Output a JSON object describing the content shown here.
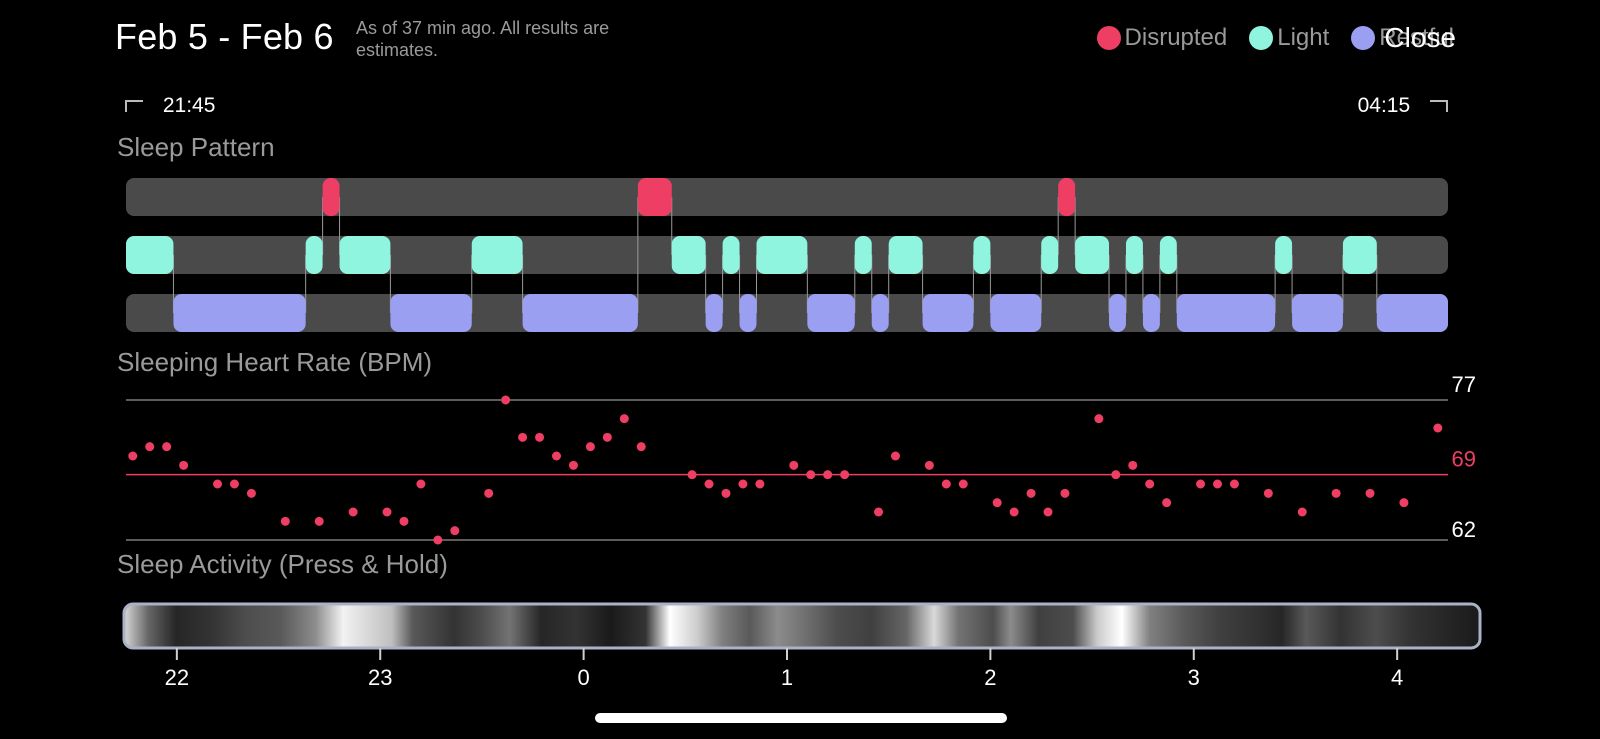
{
  "header": {
    "title": "Feb 5 - Feb 6",
    "subtitle": "As of 37 min ago. All results are estimates.",
    "close_label": "Close"
  },
  "legend": [
    {
      "label": "Disrupted",
      "color": "#ee3e64"
    },
    {
      "label": "Light",
      "color": "#8ff5df"
    },
    {
      "label": "Restful",
      "color": "#9a9ff2"
    }
  ],
  "time_range": {
    "start": "21:45",
    "end": "04:15"
  },
  "sections": {
    "sleep_pattern": "Sleep Pattern",
    "heart_rate": "Sleeping Heart Rate (BPM)",
    "activity": "Sleep Activity (Press & Hold)"
  },
  "heart_rate": {
    "max_label": "77",
    "avg_label": "69",
    "min_label": "62"
  },
  "activity_axis": [
    "22",
    "23",
    "0",
    "1",
    "2",
    "3",
    "4"
  ],
  "chart_data": [
    {
      "type": "timeline",
      "start": "21:45",
      "end": "04:15",
      "categories": [
        "Disrupted",
        "Light",
        "Restful"
      ],
      "segments": [
        {
          "stage": "Light",
          "start": "21:45",
          "end": "21:59"
        },
        {
          "stage": "Restful",
          "start": "21:59",
          "end": "22:38"
        },
        {
          "stage": "Light",
          "start": "22:38",
          "end": "22:43"
        },
        {
          "stage": "Disrupted",
          "start": "22:43",
          "end": "22:48"
        },
        {
          "stage": "Light",
          "start": "22:48",
          "end": "23:03"
        },
        {
          "stage": "Restful",
          "start": "23:03",
          "end": "23:27"
        },
        {
          "stage": "Light",
          "start": "23:27",
          "end": "23:42"
        },
        {
          "stage": "Restful",
          "start": "23:42",
          "end": "00:16"
        },
        {
          "stage": "Disrupted",
          "start": "00:16",
          "end": "00:26"
        },
        {
          "stage": "Light",
          "start": "00:26",
          "end": "00:36"
        },
        {
          "stage": "Restful",
          "start": "00:36",
          "end": "00:41"
        },
        {
          "stage": "Light",
          "start": "00:41",
          "end": "00:46"
        },
        {
          "stage": "Restful",
          "start": "00:46",
          "end": "00:51"
        },
        {
          "stage": "Light",
          "start": "00:51",
          "end": "01:06"
        },
        {
          "stage": "Restful",
          "start": "01:06",
          "end": "01:20"
        },
        {
          "stage": "Light",
          "start": "01:20",
          "end": "01:25"
        },
        {
          "stage": "Restful",
          "start": "01:25",
          "end": "01:30"
        },
        {
          "stage": "Light",
          "start": "01:30",
          "end": "01:40"
        },
        {
          "stage": "Restful",
          "start": "01:40",
          "end": "01:55"
        },
        {
          "stage": "Light",
          "start": "01:55",
          "end": "02:00"
        },
        {
          "stage": "Restful",
          "start": "02:00",
          "end": "02:15"
        },
        {
          "stage": "Light",
          "start": "02:15",
          "end": "02:20"
        },
        {
          "stage": "Disrupted",
          "start": "02:20",
          "end": "02:25"
        },
        {
          "stage": "Light",
          "start": "02:25",
          "end": "02:35"
        },
        {
          "stage": "Restful",
          "start": "02:35",
          "end": "02:40"
        },
        {
          "stage": "Light",
          "start": "02:40",
          "end": "02:45"
        },
        {
          "stage": "Restful",
          "start": "02:45",
          "end": "02:50"
        },
        {
          "stage": "Light",
          "start": "02:50",
          "end": "02:55"
        },
        {
          "stage": "Restful",
          "start": "02:55",
          "end": "03:24"
        },
        {
          "stage": "Light",
          "start": "03:24",
          "end": "03:29"
        },
        {
          "stage": "Restful",
          "start": "03:29",
          "end": "03:44"
        },
        {
          "stage": "Light",
          "start": "03:44",
          "end": "03:54"
        },
        {
          "stage": "Restful",
          "start": "03:54",
          "end": "04:15"
        }
      ]
    },
    {
      "type": "scatter",
      "ylabel": "Sleeping Heart Rate (BPM)",
      "ylim": [
        62,
        77
      ],
      "reference_line": 69,
      "points": [
        [
          "21:47",
          71
        ],
        [
          "21:52",
          72
        ],
        [
          "21:57",
          72
        ],
        [
          "22:02",
          70
        ],
        [
          "22:12",
          68
        ],
        [
          "22:17",
          68
        ],
        [
          "22:22",
          67
        ],
        [
          "22:32",
          64
        ],
        [
          "22:42",
          64
        ],
        [
          "22:52",
          65
        ],
        [
          "23:02",
          65
        ],
        [
          "23:07",
          64
        ],
        [
          "23:12",
          68
        ],
        [
          "23:17",
          62
        ],
        [
          "23:22",
          63
        ],
        [
          "23:32",
          67
        ],
        [
          "23:37",
          77
        ],
        [
          "23:42",
          73
        ],
        [
          "23:47",
          73
        ],
        [
          "23:52",
          71
        ],
        [
          "23:57",
          70
        ],
        [
          "00:02",
          72
        ],
        [
          "00:07",
          73
        ],
        [
          "00:12",
          75
        ],
        [
          "00:17",
          72
        ],
        [
          "00:32",
          69
        ],
        [
          "00:37",
          68
        ],
        [
          "00:42",
          67
        ],
        [
          "00:47",
          68
        ],
        [
          "00:52",
          68
        ],
        [
          "01:02",
          70
        ],
        [
          "01:07",
          69
        ],
        [
          "01:12",
          69
        ],
        [
          "01:17",
          69
        ],
        [
          "01:27",
          65
        ],
        [
          "01:32",
          71
        ],
        [
          "01:42",
          70
        ],
        [
          "01:47",
          68
        ],
        [
          "01:52",
          68
        ],
        [
          "02:02",
          66
        ],
        [
          "02:07",
          65
        ],
        [
          "02:12",
          67
        ],
        [
          "02:17",
          65
        ],
        [
          "02:22",
          67
        ],
        [
          "02:32",
          75
        ],
        [
          "02:37",
          69
        ],
        [
          "02:42",
          70
        ],
        [
          "02:47",
          68
        ],
        [
          "02:52",
          66
        ],
        [
          "03:02",
          68
        ],
        [
          "03:07",
          68
        ],
        [
          "03:12",
          68
        ],
        [
          "03:22",
          67
        ],
        [
          "03:32",
          65
        ],
        [
          "03:42",
          67
        ],
        [
          "03:52",
          67
        ],
        [
          "04:02",
          66
        ],
        [
          "04:12",
          74
        ]
      ]
    },
    {
      "type": "heatmap",
      "ylabel": "Sleep Activity (Press & Hold)",
      "x_ticks": [
        "22",
        "23",
        "0",
        "1",
        "2",
        "3",
        "4"
      ],
      "intensity": [
        [
          "21:45",
          0.85
        ],
        [
          "21:52",
          0.4
        ],
        [
          "22:00",
          0.15
        ],
        [
          "22:10",
          0.2
        ],
        [
          "22:20",
          0.3
        ],
        [
          "22:30",
          0.35
        ],
        [
          "22:40",
          0.55
        ],
        [
          "22:48",
          0.95
        ],
        [
          "22:55",
          0.85
        ],
        [
          "23:02",
          0.75
        ],
        [
          "23:08",
          0.35
        ],
        [
          "23:20",
          0.2
        ],
        [
          "23:28",
          0.3
        ],
        [
          "23:36",
          0.45
        ],
        [
          "23:45",
          0.15
        ],
        [
          "23:55",
          0.2
        ],
        [
          "00:05",
          0.1
        ],
        [
          "00:15",
          0.2
        ],
        [
          "00:22",
          1.0
        ],
        [
          "00:30",
          0.8
        ],
        [
          "00:37",
          0.5
        ],
        [
          "00:45",
          0.35
        ],
        [
          "00:53",
          0.55
        ],
        [
          "01:00",
          0.45
        ],
        [
          "01:10",
          0.3
        ],
        [
          "01:20",
          0.25
        ],
        [
          "01:30",
          0.4
        ],
        [
          "01:38",
          0.85
        ],
        [
          "01:45",
          0.45
        ],
        [
          "01:55",
          0.3
        ],
        [
          "02:00",
          0.55
        ],
        [
          "02:08",
          0.25
        ],
        [
          "02:18",
          0.3
        ],
        [
          "02:25",
          0.8
        ],
        [
          "02:32",
          1.0
        ],
        [
          "02:40",
          0.5
        ],
        [
          "02:50",
          0.35
        ],
        [
          "03:00",
          0.25
        ],
        [
          "03:10",
          0.2
        ],
        [
          "03:18",
          0.15
        ],
        [
          "03:25",
          0.35
        ],
        [
          "03:35",
          0.2
        ],
        [
          "03:45",
          0.3
        ],
        [
          "03:55",
          0.2
        ],
        [
          "04:05",
          0.15
        ],
        [
          "04:15",
          0.1
        ]
      ]
    }
  ]
}
